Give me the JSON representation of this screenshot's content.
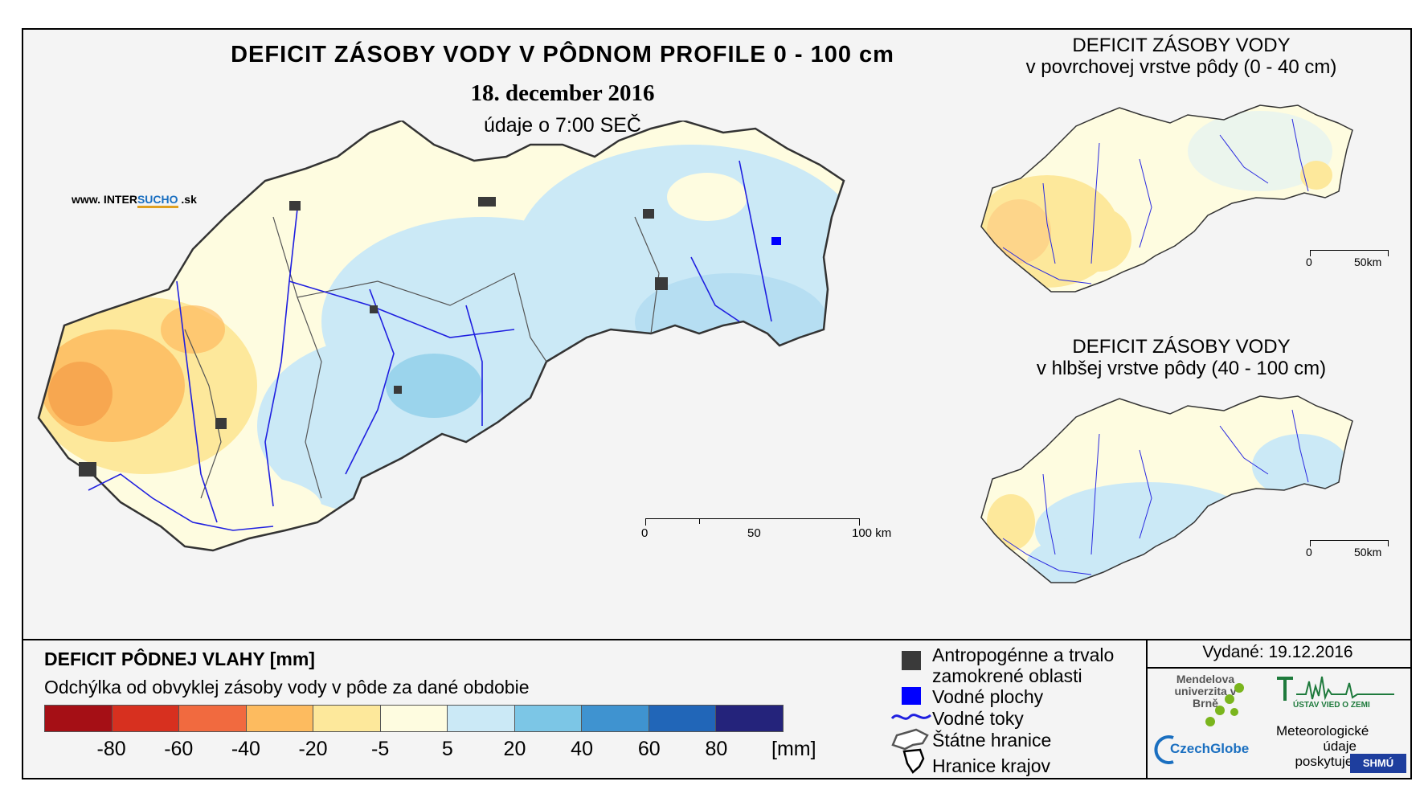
{
  "main": {
    "title": "DEFICIT ZÁSOBY VODY V PÔDNOM PROFILE 0 - 100 cm",
    "date": "18. december 2016",
    "subtitle": "údaje o 7:00 SEČ",
    "website": {
      "prefix": "www. INTER",
      "highlight": "SUCHO",
      "suffix": " .sk"
    },
    "scale": {
      "labels": [
        "0",
        "50",
        "100 km"
      ]
    }
  },
  "insets": [
    {
      "title_line1": "DEFICIT ZÁSOBY VODY",
      "title_line2": "v povrchovej vrstve pôdy (0 - 40 cm)",
      "scale": {
        "labels": [
          "0",
          "50km"
        ]
      }
    },
    {
      "title_line1": "DEFICIT ZÁSOBY VODY",
      "title_line2": "v hlbšej vrstve pôdy (40 - 100 cm)",
      "scale": {
        "labels": [
          "0",
          "50km"
        ]
      }
    }
  ],
  "legend": {
    "title": "DEFICIT PÔDNEJ VLAHY [mm]",
    "description": "Odchýlka od obvyklej zásoby vody v pôde za dané obdobie",
    "unit": "[mm]",
    "colors": [
      "#a50f15",
      "#d7301f",
      "#f16a3f",
      "#fdbb5f",
      "#fde89b",
      "#fefce0",
      "#cbe9f6",
      "#7cc6e6",
      "#3f93d0",
      "#2166b8",
      "#24237b"
    ],
    "tick_labels": [
      "-80",
      "-60",
      "-40",
      "-20",
      "-5",
      "5",
      "20",
      "40",
      "60",
      "80"
    ]
  },
  "symbols": {
    "anthropogenic": "Antropogénne a trvalo zamokrené oblasti",
    "water_bodies": "Vodné plochy",
    "rivers": "Vodné toky",
    "state_border": "Štátne hranice",
    "region_border": "Hranice krajov"
  },
  "issued": "Vydané: 19.12.2016",
  "logos": {
    "mendel": "Mendelova univerzita v Brně",
    "czechglobe": "CzechGlobe",
    "ustav": "ÚSTAV VIED O ZEMI",
    "meteo": "Meteorologické údaje poskytuje:",
    "shmu": "SHMÚ"
  }
}
